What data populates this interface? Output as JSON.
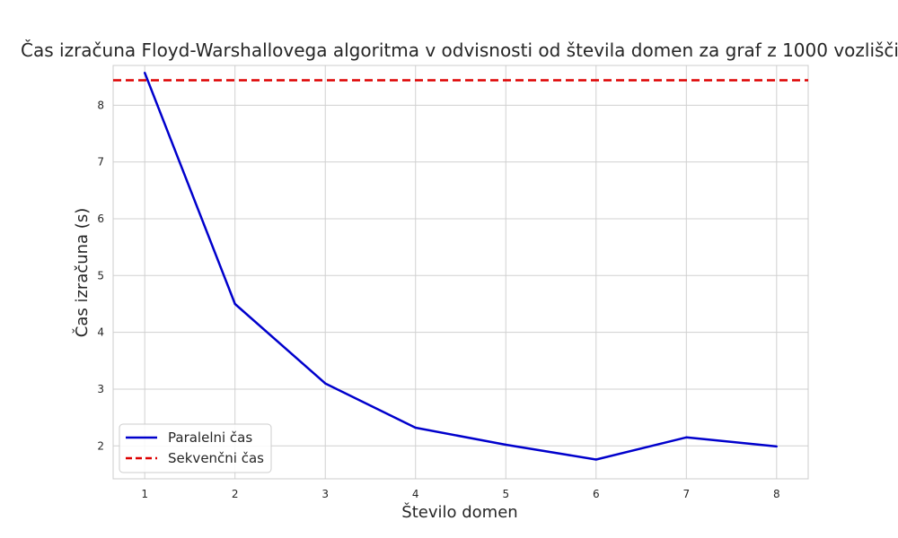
{
  "chart_data": {
    "type": "line",
    "title": "Čas izračuna Floyd-Warshallovega algoritma v odvisnosti od števila domen za graf z 1000 vozlišči",
    "xlabel": "Število domen",
    "ylabel": "Čas izračuna (s)",
    "x": [
      1,
      2,
      3,
      4,
      5,
      6,
      7,
      8
    ],
    "xlim": [
      0.65,
      8.35
    ],
    "ylim": [
      1.42,
      8.7
    ],
    "xticks": [
      1,
      2,
      3,
      4,
      5,
      6,
      7,
      8
    ],
    "yticks": [
      2,
      3,
      4,
      5,
      6,
      7,
      8
    ],
    "grid": true,
    "legend_position": "lower-left",
    "series": [
      {
        "name": "Paralelni čas",
        "style": "solid",
        "color": "#0000cc",
        "values": [
          8.57,
          4.5,
          3.1,
          2.32,
          2.02,
          1.76,
          2.15,
          1.99
        ]
      },
      {
        "name": "Sekvenčni čas",
        "style": "dashed",
        "color": "#dd0000",
        "hline": 8.44
      }
    ]
  }
}
